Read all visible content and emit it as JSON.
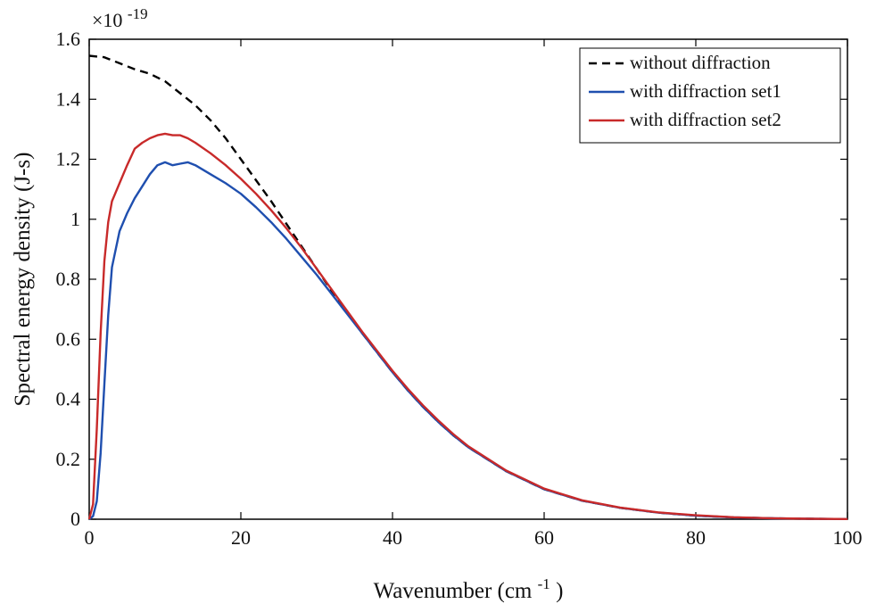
{
  "chart_data": {
    "type": "line",
    "title": "",
    "xlabel": "Wavenumber (cm",
    "xlabel_sup": "-1",
    "xlabel_end": ")",
    "ylabel": "Spectral energy density (J-s)",
    "y_multiplier_base": "×10",
    "y_multiplier_exp": "-19",
    "xlim": [
      0,
      100
    ],
    "ylim": [
      0,
      1.6
    ],
    "x_ticks": [
      0,
      20,
      40,
      60,
      80,
      100
    ],
    "x_tick_labels": [
      "0",
      "20",
      "40",
      "60",
      "80",
      "100"
    ],
    "y_ticks": [
      0,
      0.2,
      0.4,
      0.6,
      0.8,
      1.0,
      1.2,
      1.4,
      1.6
    ],
    "y_tick_labels": [
      "0",
      "0.2",
      "0.4",
      "0.6",
      "0.8",
      "1",
      "1.2",
      "1.4",
      "1.6"
    ],
    "grid": false,
    "legend_position": "top-right",
    "series": [
      {
        "name": "without diffraction",
        "color": "#000000",
        "dash": true,
        "x": [
          0,
          2,
          4,
          6,
          8,
          10,
          12,
          14,
          16,
          18,
          20,
          22,
          24,
          26,
          28,
          30,
          32,
          34,
          36,
          38,
          40,
          42,
          44,
          46,
          48,
          50,
          55,
          60,
          65,
          70,
          75,
          80,
          85,
          90,
          95,
          100
        ],
        "values": [
          1.545,
          1.54,
          1.52,
          1.5,
          1.485,
          1.46,
          1.42,
          1.38,
          1.33,
          1.27,
          1.2,
          1.13,
          1.06,
          0.985,
          0.91,
          0.835,
          0.76,
          0.69,
          0.62,
          0.555,
          0.49,
          0.43,
          0.375,
          0.325,
          0.28,
          0.24,
          0.16,
          0.1,
          0.062,
          0.038,
          0.022,
          0.012,
          0.006,
          0.003,
          0.0015,
          0.0005
        ]
      },
      {
        "name": "with diffraction set1",
        "color": "#1f4faf",
        "dash": false,
        "x": [
          0,
          0.5,
          1,
          1.5,
          2,
          2.5,
          3,
          4,
          5,
          6,
          7,
          8,
          9,
          10,
          11,
          12,
          13,
          14,
          16,
          18,
          20,
          22,
          24,
          26,
          28,
          30,
          32,
          34,
          36,
          38,
          40,
          42,
          44,
          46,
          48,
          50,
          55,
          60,
          65,
          70,
          75,
          80,
          85,
          90,
          95,
          100
        ],
        "values": [
          0,
          0.01,
          0.06,
          0.22,
          0.45,
          0.68,
          0.84,
          0.96,
          1.02,
          1.07,
          1.11,
          1.15,
          1.18,
          1.19,
          1.18,
          1.185,
          1.19,
          1.18,
          1.15,
          1.12,
          1.085,
          1.04,
          0.99,
          0.935,
          0.875,
          0.815,
          0.75,
          0.685,
          0.62,
          0.555,
          0.49,
          0.43,
          0.375,
          0.325,
          0.28,
          0.24,
          0.16,
          0.1,
          0.062,
          0.038,
          0.022,
          0.012,
          0.006,
          0.003,
          0.0015,
          0.0005
        ]
      },
      {
        "name": "with diffraction set2",
        "color": "#c82a2a",
        "dash": false,
        "x": [
          0,
          0.5,
          1,
          1.5,
          2,
          2.5,
          3,
          4,
          5,
          6,
          7,
          8,
          9,
          10,
          11,
          12,
          13,
          14,
          16,
          18,
          20,
          22,
          24,
          26,
          28,
          30,
          32,
          34,
          36,
          38,
          40,
          42,
          44,
          46,
          48,
          50,
          55,
          60,
          65,
          70,
          75,
          80,
          85,
          90,
          95,
          100
        ],
        "values": [
          0,
          0.05,
          0.3,
          0.62,
          0.86,
          0.99,
          1.06,
          1.12,
          1.18,
          1.235,
          1.255,
          1.27,
          1.28,
          1.285,
          1.28,
          1.28,
          1.27,
          1.255,
          1.22,
          1.18,
          1.135,
          1.085,
          1.03,
          0.97,
          0.905,
          0.835,
          0.765,
          0.695,
          0.625,
          0.56,
          0.495,
          0.435,
          0.38,
          0.33,
          0.284,
          0.243,
          0.162,
          0.102,
          0.063,
          0.039,
          0.023,
          0.013,
          0.0065,
          0.0032,
          0.0016,
          0.0006
        ]
      }
    ]
  }
}
